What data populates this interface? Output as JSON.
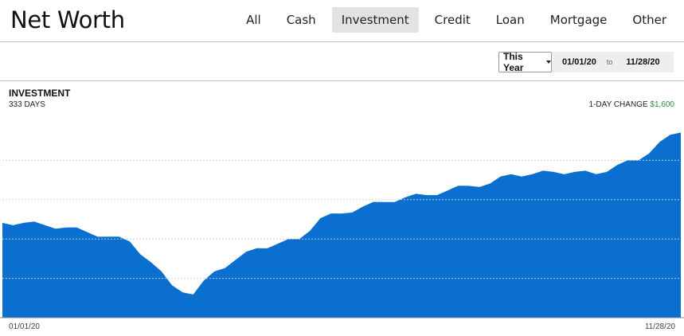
{
  "header": {
    "title": "Net Worth",
    "tabs": [
      {
        "label": "All",
        "active": false
      },
      {
        "label": "Cash",
        "active": false
      },
      {
        "label": "Investment",
        "active": true
      },
      {
        "label": "Credit",
        "active": false
      },
      {
        "label": "Loan",
        "active": false
      },
      {
        "label": "Mortgage",
        "active": false
      },
      {
        "label": "Other",
        "active": false
      }
    ]
  },
  "toolbar": {
    "range_select": "This Year",
    "date_from": "01/01/20",
    "date_to_label": "to",
    "date_to": "11/28/20"
  },
  "chart": {
    "title": "INVESTMENT",
    "days": "333 DAYS",
    "change_label": "1-DAY CHANGE",
    "change_value": "$1,600",
    "x_start": "01/01/20",
    "x_end": "11/28/20"
  },
  "colors": {
    "area_fill": "#0a6fce",
    "change_positive": "#2e8b3c",
    "active_tab_bg": "#e3e3e3"
  },
  "chart_data": {
    "type": "area",
    "x": [
      "01/01/20",
      "01/13/20",
      "01/25/20",
      "02/06/20",
      "02/18/20",
      "02/28/20",
      "03/04/20",
      "03/12/20",
      "03/18/20",
      "03/23/20",
      "03/31/20",
      "04/10/20",
      "04/24/20",
      "05/08/20",
      "05/22/20",
      "06/02/20",
      "06/05/20",
      "06/12/20",
      "06/20/20",
      "06/26/20",
      "07/08/20",
      "07/22/20",
      "08/05/20",
      "08/20/20",
      "09/02/20",
      "09/08/20",
      "09/24/20",
      "10/12/20",
      "10/28/20",
      "11/03/20",
      "11/10/20",
      "11/20/20",
      "11/28/20"
    ],
    "values": [
      0.41,
      0.41,
      0.4,
      0.39,
      0.37,
      0.35,
      0.33,
      0.24,
      0.14,
      0.1,
      0.2,
      0.25,
      0.3,
      0.32,
      0.34,
      0.43,
      0.45,
      0.48,
      0.5,
      0.52,
      0.53,
      0.55,
      0.57,
      0.58,
      0.62,
      0.62,
      0.63,
      0.63,
      0.62,
      0.66,
      0.68,
      0.76,
      0.8
    ],
    "ylim": [
      0,
      0.85
    ],
    "grid": true,
    "series_color": "#0a6fce"
  }
}
